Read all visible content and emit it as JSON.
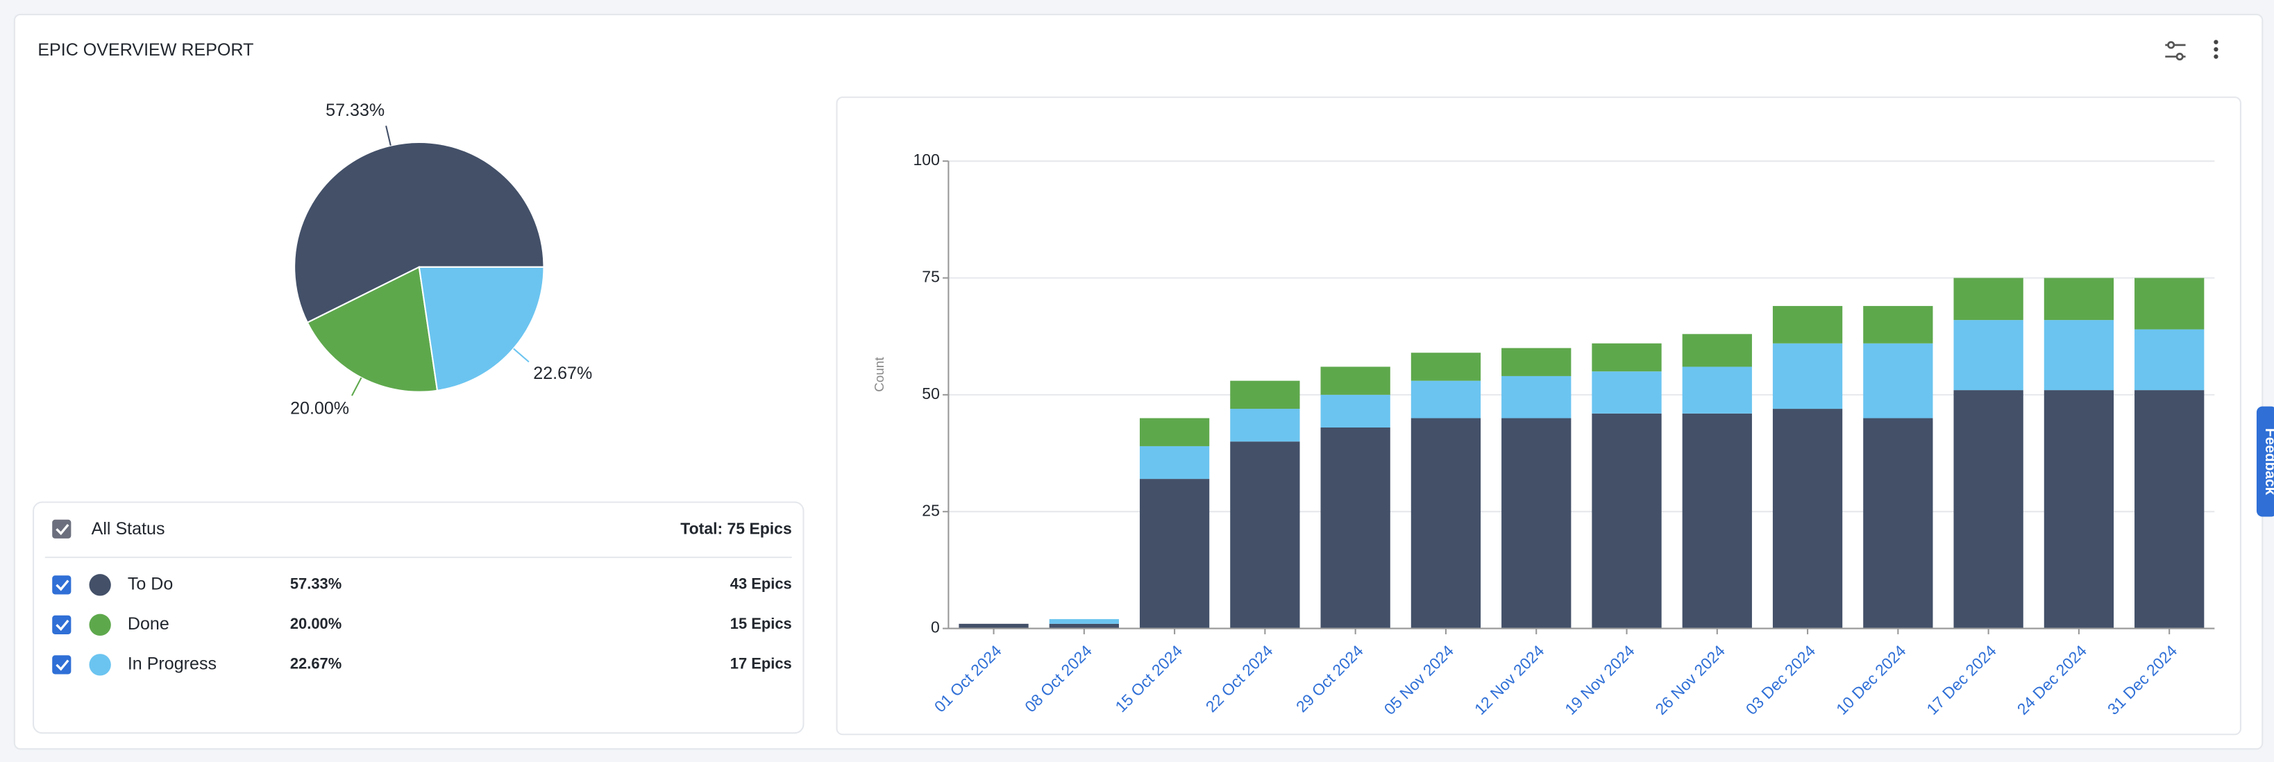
{
  "header": {
    "title": "EPIC OVERVIEW REPORT"
  },
  "feedback_tab": "Feedback",
  "legend": {
    "all_label": "All Status",
    "total": "Total: 75 Epics",
    "rows": [
      {
        "count": "43 Epics"
      },
      {
        "count": "15 Epics"
      },
      {
        "count": "17 Epics"
      }
    ]
  },
  "chart_data": [
    {
      "type": "pie",
      "categories": [
        "To Do",
        "Done",
        "In Progress"
      ],
      "values": [
        57.33,
        20.0,
        22.67
      ],
      "value_labels": [
        "57.33%",
        "20.00%",
        "22.67%"
      ],
      "colors": [
        "#435068",
        "#5ea84c",
        "#6bc4f0"
      ]
    },
    {
      "type": "bar",
      "stacked": true,
      "ylabel": "Count",
      "categories": [
        "01 Oct 2024",
        "08 Oct 2024",
        "15 Oct 2024",
        "22 Oct 2024",
        "29 Oct 2024",
        "05 Nov 2024",
        "12 Nov 2024",
        "19 Nov 2024",
        "26 Nov 2024",
        "03 Dec 2024",
        "10 Dec 2024",
        "17 Dec 2024",
        "24 Dec 2024",
        "31 Dec 2024"
      ],
      "series": [
        {
          "color": "#435068",
          "values": [
            1,
            1,
            32,
            40,
            43,
            45,
            45,
            46,
            46,
            47,
            45,
            51,
            51,
            51
          ]
        },
        {
          "color": "#6bc4f0",
          "values": [
            0,
            1,
            7,
            7,
            7,
            8,
            9,
            9,
            10,
            14,
            16,
            15,
            15,
            13
          ]
        },
        {
          "color": "#5ea84c",
          "values": [
            0,
            0,
            6,
            6,
            6,
            6,
            6,
            6,
            7,
            8,
            8,
            9,
            9,
            11
          ]
        }
      ],
      "ylim": [
        0,
        100
      ],
      "yticks": [
        0,
        25,
        50,
        75,
        100
      ],
      "grid": true
    }
  ]
}
